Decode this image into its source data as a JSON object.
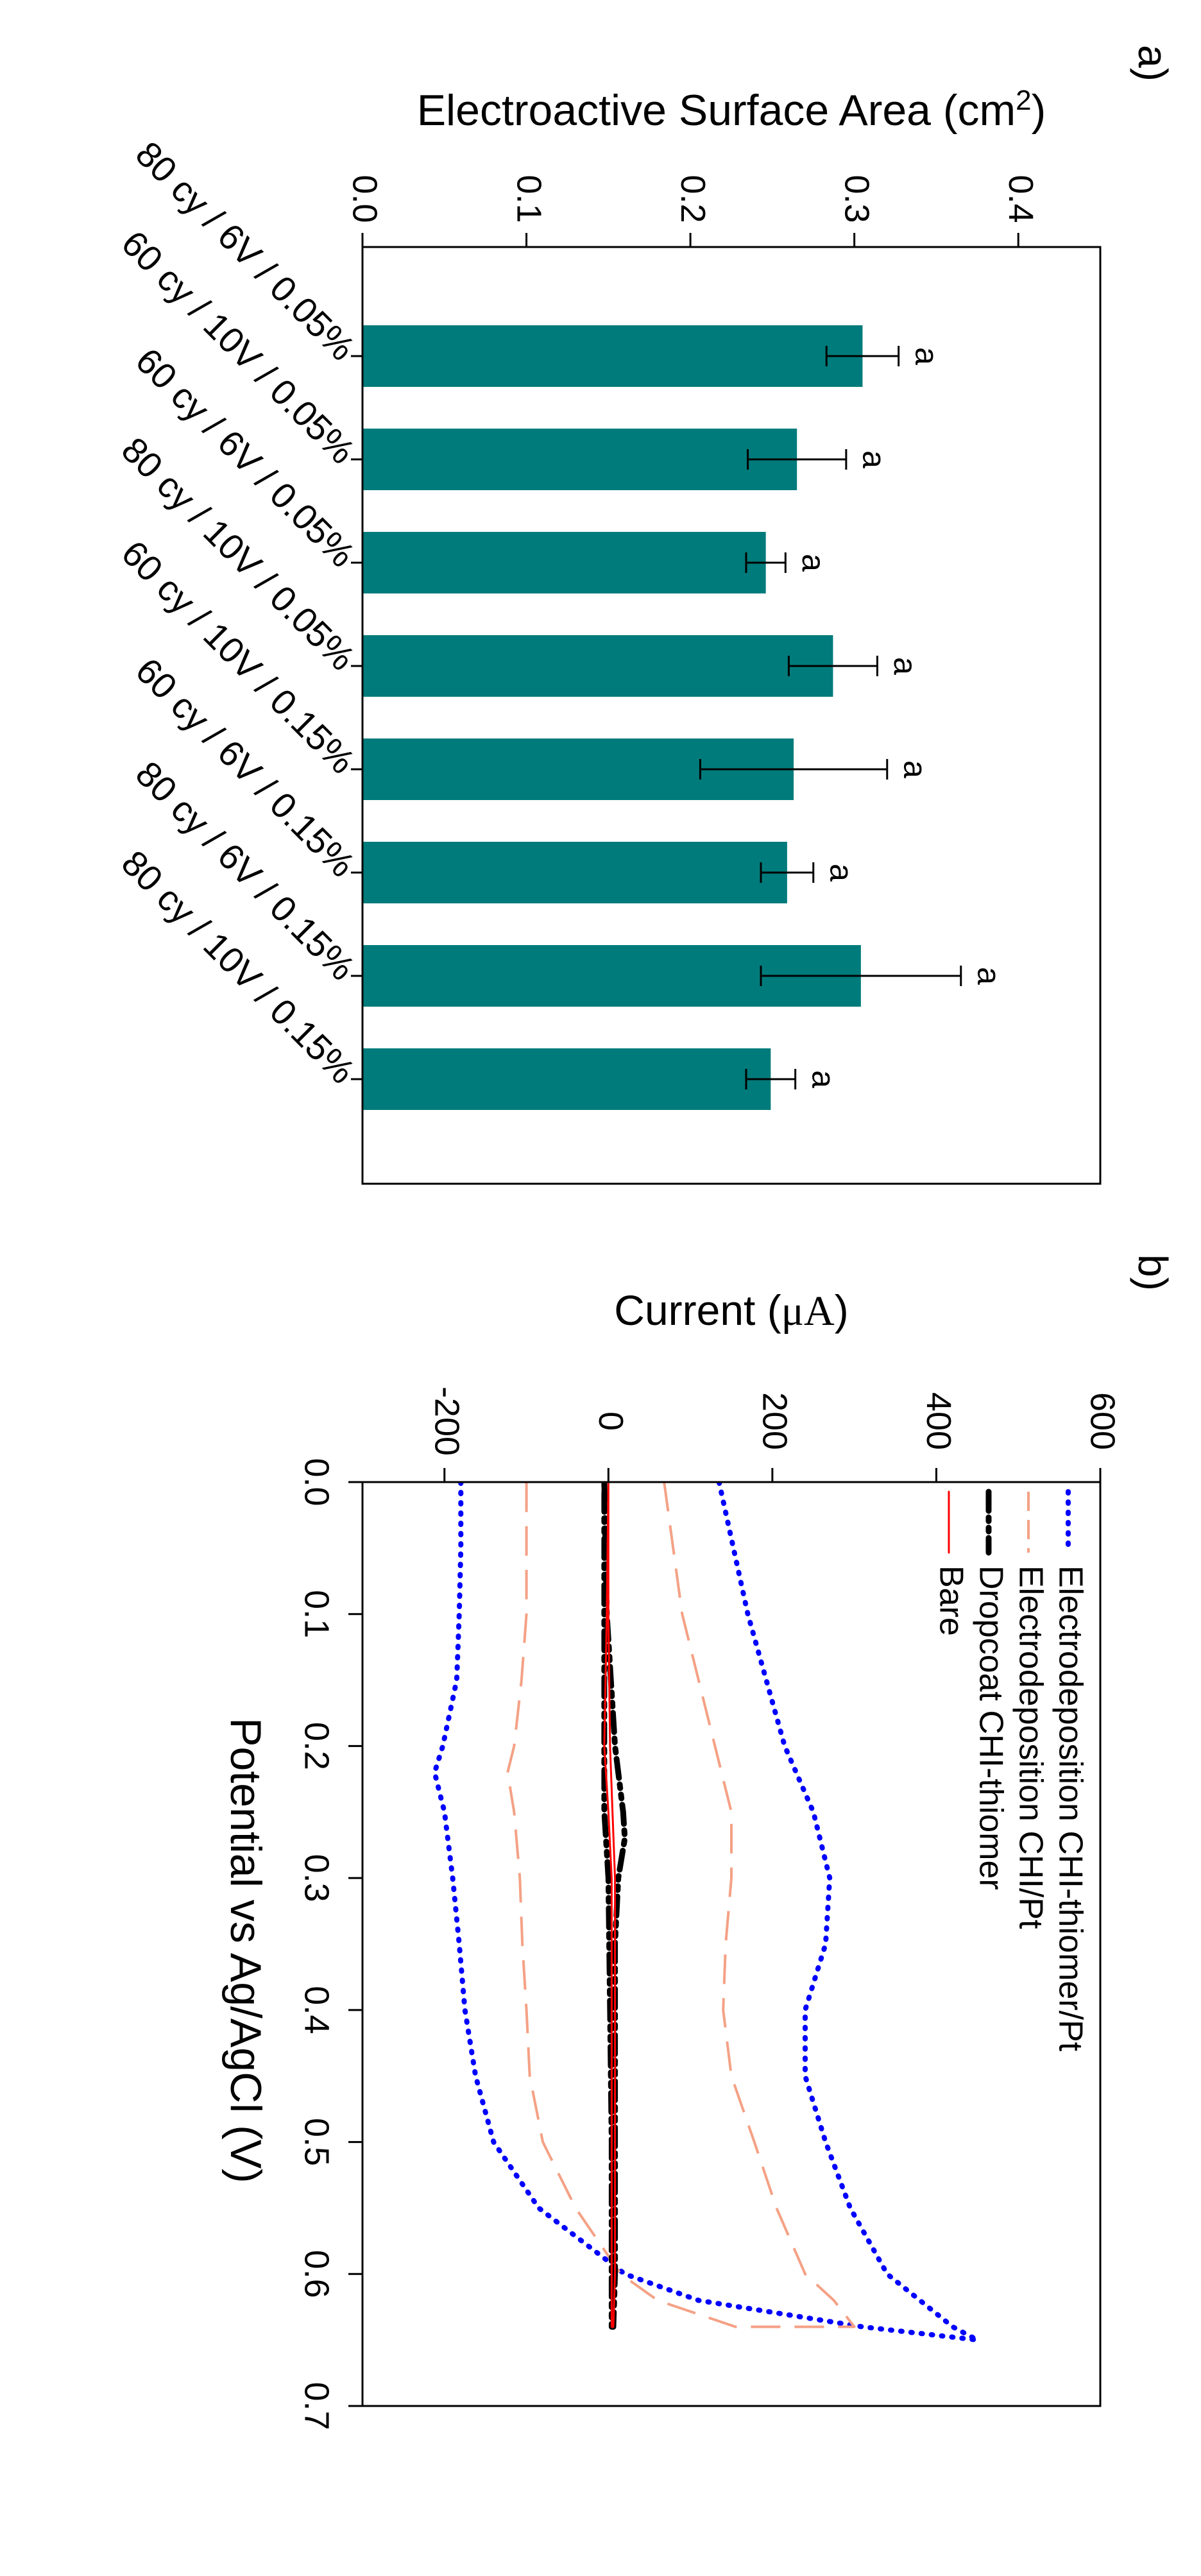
{
  "chart_data": [
    {
      "panel": "a)",
      "type": "bar",
      "orientation": "rotated 90 degrees clockwise",
      "ylabel_text": "Electroactive Surface Area (cm",
      "ylabel_sup": "2",
      "ylabel_close": ")",
      "yticks": [
        "0.0",
        "0.1",
        "0.2",
        "0.3",
        "0.4"
      ],
      "ylim": [
        0,
        0.45
      ],
      "color": "#007b7b",
      "categories": [
        "80 cy / 6V / 0.05%",
        "60 cy / 10V / 0.05%",
        "60 cy / 6V / 0.05%",
        "80 cy / 10V / 0.05%",
        "60 cy / 10V / 0.15%",
        "60 cy / 6V / 0.15%",
        "80 cy / 6V / 0.15%",
        "80 cy / 10V / 0.15%"
      ],
      "values": [
        0.305,
        0.265,
        0.246,
        0.287,
        0.263,
        0.259,
        0.304,
        0.249
      ],
      "errors": [
        0.022,
        0.03,
        0.012,
        0.027,
        0.057,
        0.016,
        0.061,
        0.015
      ],
      "letters": [
        "a",
        "a",
        "a",
        "a",
        "a",
        "a",
        "a",
        "a"
      ]
    },
    {
      "panel": "b)",
      "type": "line",
      "orientation": "rotated 90 degrees clockwise",
      "xlabel": "Potential vs Ag/AgCl (V)",
      "ylabel_text": "Current (",
      "ylabel_unit": "μA",
      "ylabel_close": ")",
      "xticks": [
        "0.0",
        "0.1",
        "0.2",
        "0.3",
        "0.4",
        "0.5",
        "0.6",
        "0.7"
      ],
      "xlim": [
        0,
        0.7
      ],
      "yticks": [
        "-200",
        "0",
        "200",
        "400",
        "600"
      ],
      "ylim": [
        -300,
        600
      ],
      "series": [
        {
          "name": "Electrodeposition CHI-thiomer/Pt",
          "color": "#0000ff",
          "style": "dotted",
          "x": [
            0,
            0.1,
            0.2,
            0.25,
            0.3,
            0.35,
            0.4,
            0.45,
            0.5,
            0.55,
            0.6,
            0.62,
            0.64,
            0.65,
            0.64,
            0.62,
            0.6,
            0.55,
            0.5,
            0.45,
            0.4,
            0.35,
            0.3,
            0.25,
            0.22,
            0.2,
            0.15,
            0.1,
            0.05,
            0
          ],
          "y": [
            135,
            170,
            215,
            250,
            270,
            265,
            240,
            240,
            265,
            295,
            340,
            380,
            420,
            450,
            310,
            110,
            20,
            -85,
            -140,
            -162,
            -175,
            -182,
            -190,
            -200,
            -212,
            -202,
            -185,
            -182,
            -180,
            -180
          ]
        },
        {
          "name": "Electrodeposition CHI/Pt",
          "color": "#f4a185",
          "style": "dashed",
          "x": [
            0,
            0.1,
            0.2,
            0.25,
            0.3,
            0.35,
            0.4,
            0.45,
            0.5,
            0.55,
            0.6,
            0.62,
            0.64,
            0.64,
            0.62,
            0.6,
            0.55,
            0.5,
            0.45,
            0.4,
            0.35,
            0.3,
            0.25,
            0.22,
            0.2,
            0.15,
            0.1,
            0.05,
            0
          ],
          "y": [
            68,
            90,
            130,
            150,
            150,
            143,
            140,
            150,
            178,
            205,
            240,
            275,
            300,
            155,
            60,
            15,
            -40,
            -80,
            -96,
            -100,
            -105,
            -108,
            -115,
            -123,
            -115,
            -106,
            -100,
            -100,
            -100
          ]
        },
        {
          "name": "Dropcoat CHI-thiomer",
          "color": "#000000",
          "style": "dashdotdot",
          "x": [
            0,
            0.1,
            0.2,
            0.25,
            0.27,
            0.3,
            0.35,
            0.4,
            0.5,
            0.6,
            0.64,
            0.64,
            0.6,
            0.5,
            0.4,
            0.3,
            0.28,
            0.25,
            0.2,
            0.1,
            0
          ],
          "y": [
            -5,
            -2,
            8,
            18,
            20,
            12,
            8,
            8,
            8,
            8,
            6,
            4,
            4,
            4,
            2,
            0,
            -2,
            -5,
            -5,
            -5,
            -5
          ]
        },
        {
          "name": "Bare",
          "color": "#ff0000",
          "style": "solid",
          "x": [
            0,
            0.1,
            0.2,
            0.25,
            0.3,
            0.4,
            0.5,
            0.6,
            0.64,
            0.64,
            0.6,
            0.5,
            0.4,
            0.3,
            0.25,
            0.2,
            0.1,
            0
          ],
          "y": [
            0,
            0,
            2,
            5,
            8,
            8,
            8,
            8,
            6,
            4,
            4,
            4,
            4,
            4,
            0,
            -5,
            -2,
            0
          ]
        }
      ]
    }
  ]
}
